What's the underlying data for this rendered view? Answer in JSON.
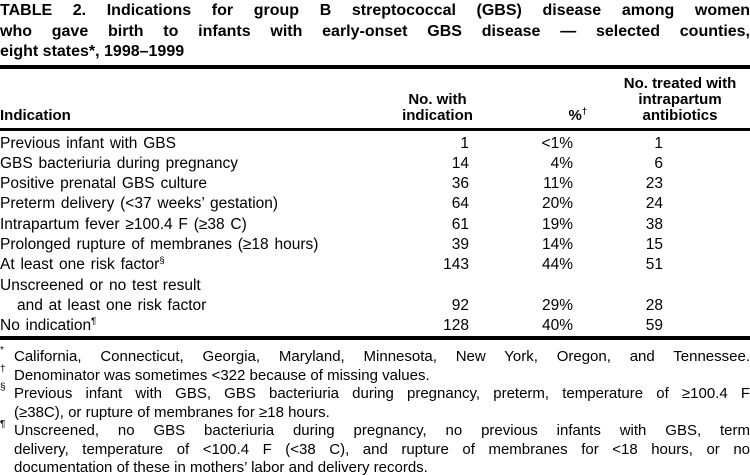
{
  "title": {
    "line1": "TABLE 2. Indications for group B streptococcal (GBS) disease among women",
    "line2": "who gave birth to infants with early-onset GBS disease — selected counties,",
    "line3": "eight states*, 1998–1999"
  },
  "table": {
    "header": {
      "indication": "Indication",
      "col2_line1": "No. with",
      "col2_line2": "indication",
      "pct": "%",
      "pct_sup": "†",
      "col4_line1": "No. treated with",
      "col4_line2": "intrapartum",
      "col4_line3": "antibiotics"
    },
    "rows": [
      {
        "indication": "Previous infant with GBS",
        "n": "1",
        "pct": "<1%",
        "treated": "1"
      },
      {
        "indication": "GBS bacteriuria during pregnancy",
        "n": "14",
        "pct": "4%",
        "treated": "6"
      },
      {
        "indication": "Positive prenatal GBS culture",
        "n": "36",
        "pct": "11%",
        "treated": "23"
      },
      {
        "indication": "Preterm delivery (<37 weeks’ gestation)",
        "n": "64",
        "pct": "20%",
        "treated": "24"
      },
      {
        "indication": "Intrapartum fever ≥100.4 F (≥38 C)",
        "n": "61",
        "pct": "19%",
        "treated": "38"
      },
      {
        "indication": "Prolonged rupture of membranes (≥18 hours)",
        "n": "39",
        "pct": "14%",
        "treated": "15"
      },
      {
        "indication": "At least one risk factor",
        "sup": "§",
        "n": "143",
        "pct": "44%",
        "treated": "51"
      },
      {
        "indication": "Unscreened or no test result",
        "n": "",
        "pct": "",
        "treated": ""
      },
      {
        "indication": "and at least one risk factor",
        "n": "92",
        "pct": "29%",
        "treated": "28"
      },
      {
        "indication": "No indication",
        "sup": "¶",
        "n": "128",
        "pct": "40%",
        "treated": "59"
      }
    ]
  },
  "footnotes": [
    {
      "marker": "*",
      "lines": [
        "California, Connecticut, Georgia, Maryland, Minnesota, New York, Oregon, and Tennessee."
      ]
    },
    {
      "marker": "†",
      "lines": [
        "Denominator was sometimes <322 because of missing values."
      ]
    },
    {
      "marker": "§",
      "lines": [
        "Previous infant with GBS, GBS bacteriuria during pregnancy, preterm, temperature of ≥100.4 F",
        "(≥38C), or rupture of membranes for ≥18 hours."
      ]
    },
    {
      "marker": "¶",
      "lines": [
        "Unscreened, no GBS bacteriuria during pregnancy, no previous infants with GBS, term",
        "delivery, temperature of <100.4 F (<38 C), and rupture of membranes for <18 hours, or no",
        "documentation of these in mothers’ labor and delivery records."
      ]
    }
  ],
  "colors": {
    "text": "#000000",
    "background": "#ffffff",
    "rule": "#000000"
  }
}
